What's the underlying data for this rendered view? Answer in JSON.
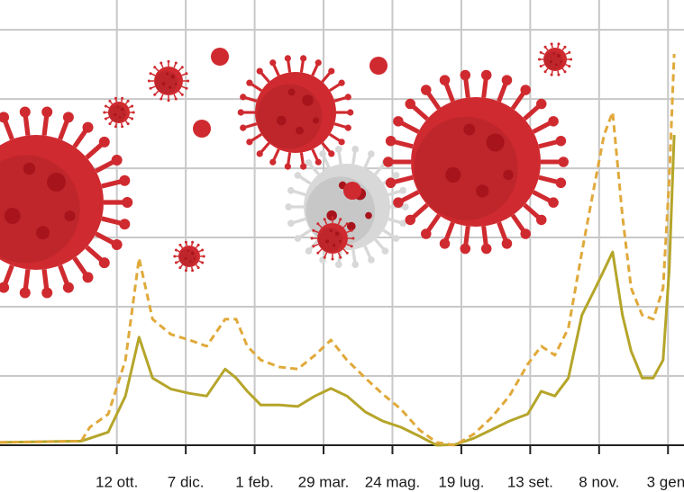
{
  "chart_data": {
    "type": "line",
    "x": [
      -95,
      -29,
      -22,
      -7,
      7,
      18,
      29,
      44,
      59,
      73,
      88,
      97,
      106,
      117,
      132,
      147,
      161,
      174,
      187,
      202,
      216,
      231,
      246,
      260,
      275,
      290,
      304,
      319,
      334,
      345,
      356,
      367,
      378,
      389,
      396,
      403,
      411,
      418,
      427,
      436,
      444,
      449,
      453
    ],
    "series": [
      {
        "color": "#b5a52a",
        "dash": false,
        "values": [
          0.04,
          0.06,
          0.1,
          0.19,
          0.71,
          1.56,
          0.97,
          0.81,
          0.75,
          0.71,
          1.1,
          0.97,
          0.78,
          0.58,
          0.58,
          0.56,
          0.71,
          0.82,
          0.71,
          0.48,
          0.35,
          0.26,
          0.13,
          0,
          0.01,
          0.1,
          0.22,
          0.35,
          0.45,
          0.78,
          0.71,
          0.97,
          1.88,
          2.27,
          2.53,
          2.79,
          1.88,
          1.36,
          0.97,
          0.97,
          1.23,
          2.53,
          4.48
        ]
      },
      {
        "color": "#e0a93a",
        "dash": true,
        "values": [
          0.04,
          0.06,
          0.26,
          0.45,
          1.23,
          2.7,
          1.82,
          1.6,
          1.52,
          1.43,
          1.82,
          1.82,
          1.43,
          1.23,
          1.13,
          1.1,
          1.3,
          1.52,
          1.23,
          0.97,
          0.74,
          0.52,
          0.22,
          0.04,
          0,
          0.16,
          0.39,
          0.71,
          1.17,
          1.43,
          1.3,
          1.69,
          2.79,
          3.83,
          4.48,
          4.81,
          3.31,
          2.27,
          1.88,
          1.82,
          2.27,
          3.83,
          5.65
        ]
      }
    ],
    "xlim": [
      -95,
      461
    ],
    "xticks": [
      {
        "value": 0,
        "label": "12 ott."
      },
      {
        "value": 56,
        "label": "7 dic."
      },
      {
        "value": 112,
        "label": "1 feb."
      },
      {
        "value": 168,
        "label": "29 mar."
      },
      {
        "value": 224,
        "label": "24 mag."
      },
      {
        "value": 280,
        "label": "19 lug."
      },
      {
        "value": 336,
        "label": "13 set."
      },
      {
        "value": 392,
        "label": "8 nov."
      },
      {
        "value": 448,
        "label": "3 gen."
      }
    ],
    "ylim": [
      0,
      6.43
    ],
    "yticks": [
      1,
      2,
      3,
      4,
      5,
      6
    ],
    "grid": true
  }
}
